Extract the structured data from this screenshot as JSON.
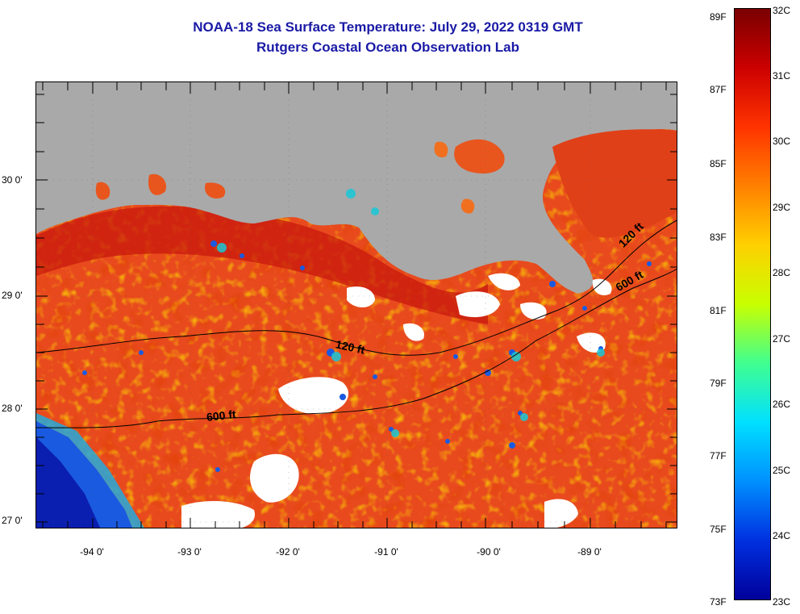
{
  "title": {
    "line1": "NOAA-18 Sea Surface Temperature:  July 29, 2022 0319 GMT",
    "line2": "Rutgers Coastal Ocean Observation Lab"
  },
  "map": {
    "lat_labels": [
      "30 0'",
      "29 0'",
      "28 0'",
      "27 0'"
    ],
    "lon_labels": [
      "-94 0'",
      "-93 0'",
      "-92 0'",
      "-91 0'",
      "-90 0'",
      "-89 0'"
    ],
    "depth_labels": [
      "120 ft",
      "120 ft",
      "600 ft",
      "600 ft"
    ],
    "colors": {
      "land": "#a9a9a9",
      "cloud": "#ffffff",
      "warm_water": "#e84a1e"
    }
  },
  "colorbar": {
    "fahrenheit": [
      "89F",
      "87F",
      "85F",
      "83F",
      "81F",
      "79F",
      "77F",
      "75F",
      "73F"
    ],
    "celsius": [
      "32C",
      "31C",
      "30C",
      "29C",
      "28C",
      "27C",
      "26C",
      "25C",
      "24C",
      "23C"
    ],
    "colors": [
      "#7a0000",
      "#cc0000",
      "#ff3300",
      "#ff8000",
      "#ffd000",
      "#c8ff00",
      "#40ff90",
      "#00e0ff",
      "#0090ff",
      "#0030e0",
      "#00009a"
    ]
  }
}
